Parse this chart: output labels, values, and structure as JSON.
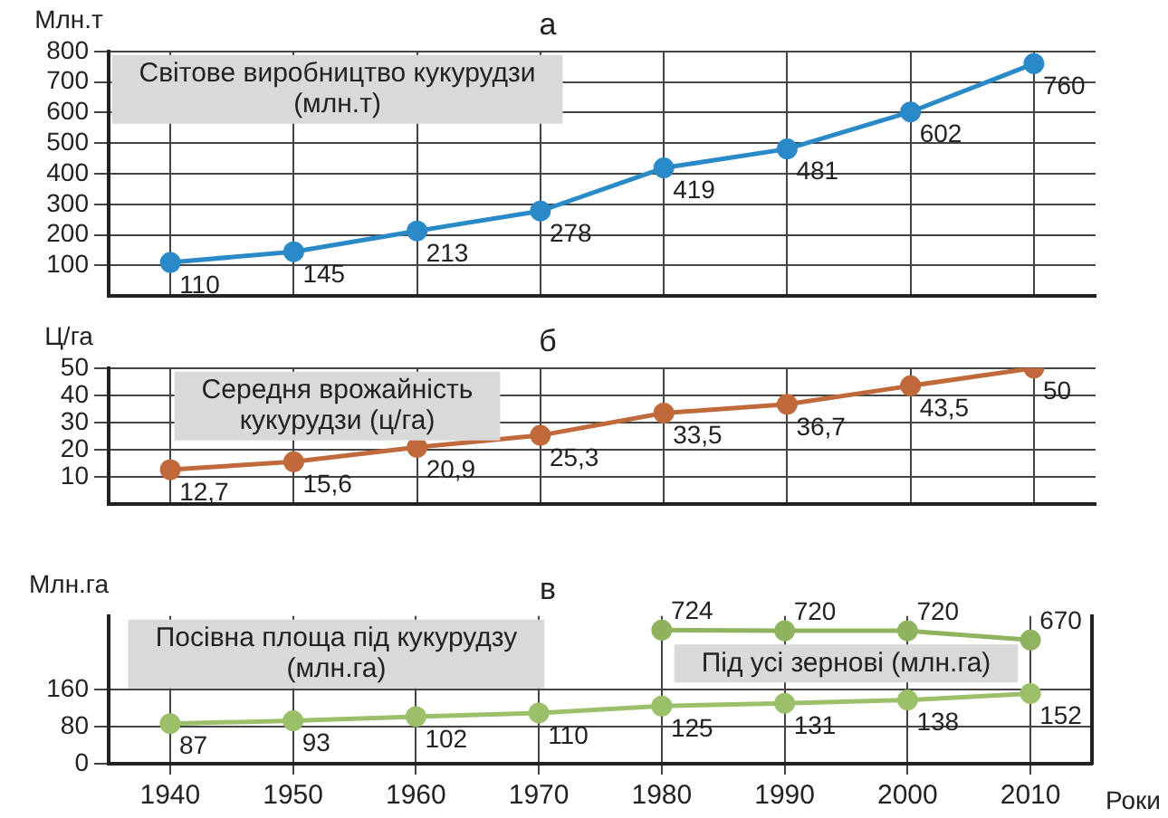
{
  "chart_data": [
    {
      "type": "line",
      "title": "а",
      "ylabel": "Млн.т",
      "categories": [
        "1940",
        "1950",
        "1960",
        "1970",
        "1980",
        "1990",
        "2000",
        "2010"
      ],
      "ylim": [
        0,
        800
      ],
      "yticks": [
        100,
        200,
        300,
        400,
        500,
        600,
        700,
        800
      ],
      "grid": true,
      "legend": false,
      "tick_labels": "y",
      "data_labels": true,
      "marker": "circle",
      "series": [
        {
          "name": "Світове виробництво кукурудзи (млн.т)",
          "color": "#2a8ac8",
          "values": [
            110,
            145,
            213,
            278,
            419,
            481,
            602,
            760
          ]
        }
      ]
    },
    {
      "type": "line",
      "title": "б",
      "ylabel": "Ц/га",
      "categories": [
        "1940",
        "1950",
        "1960",
        "1970",
        "1980",
        "1990",
        "2000",
        "2010"
      ],
      "ylim": [
        0,
        50
      ],
      "yticks": [
        10,
        20,
        30,
        40,
        50
      ],
      "grid": true,
      "legend": false,
      "tick_labels": "y",
      "marker": "circle",
      "series": [
        {
          "name": "Середня врожайність кукурудзи (ц/га)",
          "color": "#c0693a",
          "values": [
            12.7,
            15.6,
            20.9,
            25.3,
            33.5,
            36.7,
            43.5,
            50
          ],
          "value_labels": [
            "12,7",
            "15,6",
            "20,9",
            "25,3",
            "33,5",
            "36,7",
            "43,5",
            "50"
          ]
        }
      ]
    },
    {
      "type": "line",
      "title": "в",
      "ylabel": "Млн.га",
      "xlabel": "Роки",
      "categories": [
        "1940",
        "1950",
        "1960",
        "1970",
        "1980",
        "1990",
        "2000",
        "2010"
      ],
      "ylim": [
        0,
        320
      ],
      "yticks": [
        0,
        80,
        160
      ],
      "y2lim": [
        0,
        800
      ],
      "grid": true,
      "legend": false,
      "data_labels": true,
      "marker": "circle",
      "series": [
        {
          "name": "Посівна площа під кукурудзу (млн.га)",
          "color": "#9cbf6a",
          "values": [
            87,
            93,
            102,
            110,
            125,
            131,
            138,
            152
          ]
        },
        {
          "name": "Під усі зернові (млн.га)",
          "color": "#8fb35e",
          "axis": "y2",
          "values": [
            null,
            null,
            null,
            null,
            724,
            720,
            720,
            670
          ]
        }
      ]
    }
  ]
}
